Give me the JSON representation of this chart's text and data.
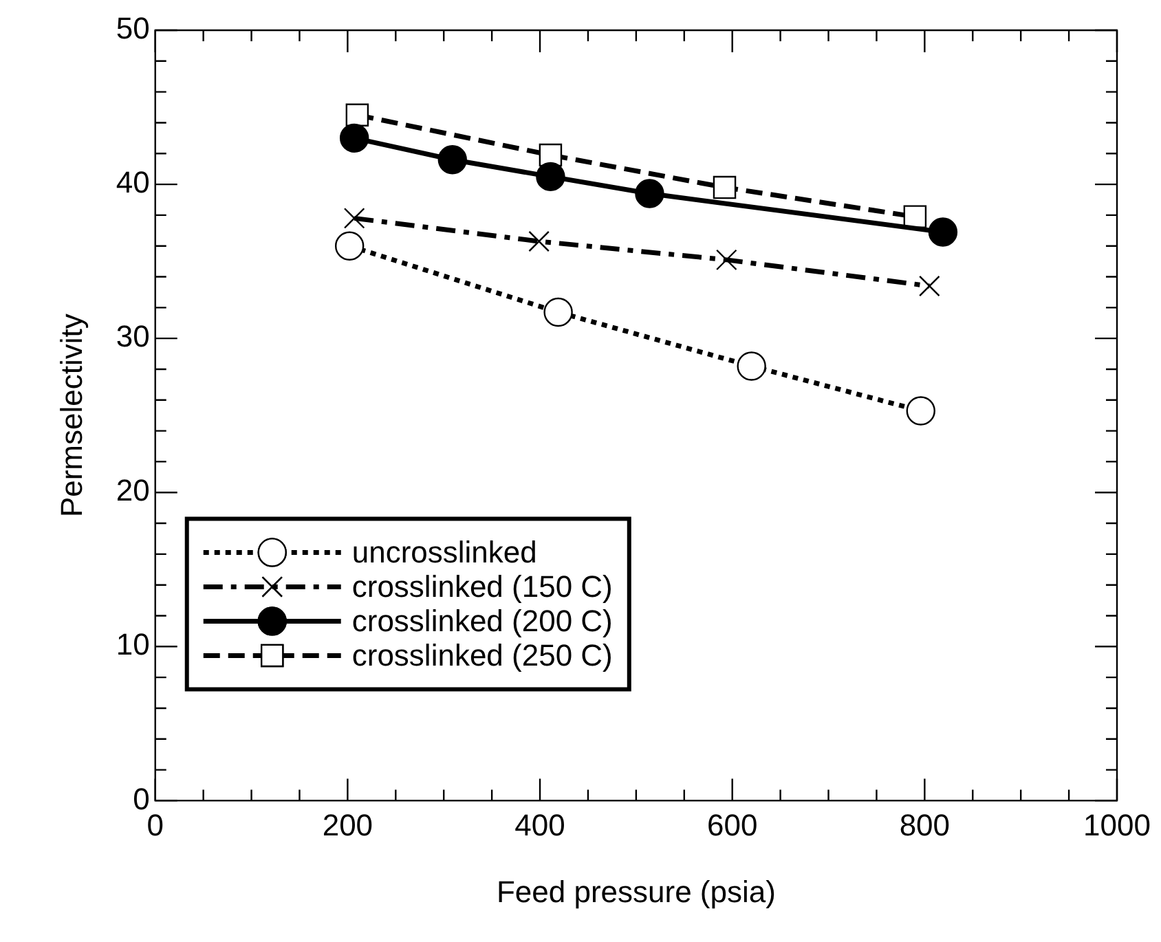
{
  "chart_data": {
    "type": "line",
    "xlabel": "Feed pressure (psia)",
    "ylabel": "Permselectivity",
    "xlim": [
      0,
      1000
    ],
    "ylim": [
      0,
      50
    ],
    "xticks": [
      0,
      {
        "value": 50,
        "label": null
      },
      {
        "value": 100,
        "label": null
      },
      {
        "value": 150,
        "label": null
      },
      200,
      {
        "value": 250,
        "label": null
      },
      {
        "value": 300,
        "label": null
      },
      {
        "value": 350,
        "label": null
      },
      400,
      {
        "value": 450,
        "label": null
      },
      {
        "value": 500,
        "label": null
      },
      {
        "value": 550,
        "label": null
      },
      600,
      {
        "value": 650,
        "label": null
      },
      {
        "value": 700,
        "label": null
      },
      {
        "value": 750,
        "label": null
      },
      800,
      {
        "value": 850,
        "label": null
      },
      {
        "value": 900,
        "label": null
      },
      {
        "value": 950,
        "label": null
      },
      1000
    ],
    "yticks": [
      0,
      {
        "value": 2,
        "label": null
      },
      {
        "value": 4,
        "label": null
      },
      {
        "value": 6,
        "label": null
      },
      {
        "value": 8,
        "label": null
      },
      10,
      {
        "value": 12,
        "label": null
      },
      {
        "value": 14,
        "label": null
      },
      {
        "value": 16,
        "label": null
      },
      {
        "value": 18,
        "label": null
      },
      20,
      {
        "value": 22,
        "label": null
      },
      {
        "value": 24,
        "label": null
      },
      {
        "value": 26,
        "label": null
      },
      {
        "value": 28,
        "label": null
      },
      30,
      {
        "value": 32,
        "label": null
      },
      {
        "value": 34,
        "label": null
      },
      {
        "value": 36,
        "label": null
      },
      {
        "value": 38,
        "label": null
      },
      40,
      {
        "value": 42,
        "label": null
      },
      {
        "value": 44,
        "label": null
      },
      {
        "value": 46,
        "label": null
      },
      {
        "value": 48,
        "label": null
      },
      50
    ],
    "grid": false,
    "legend": "bottom left",
    "series": [
      {
        "name": "uncrosslinked",
        "color": "#000000",
        "marker": "circle",
        "line_style": "dotted",
        "x": [
          202,
          419,
          620,
          796
        ],
        "values": [
          36.0,
          31.7,
          28.2,
          25.3
        ]
      },
      {
        "name": "crosslinked (150 C)",
        "color": "#000000",
        "marker": "cross",
        "line_style": "dashdot",
        "x": [
          207,
          399,
          594,
          805
        ],
        "values": [
          37.8,
          36.3,
          35.1,
          33.4
        ]
      },
      {
        "name": "crosslinked (200 C)",
        "color": "#000000",
        "colors": [
          "#000000",
          "#000000",
          "#000000",
          "#000000",
          "#000000"
        ],
        "marker": "circle",
        "line_style": "solid",
        "x": [
          207,
          309,
          411,
          514,
          819
        ],
        "values": [
          43.0,
          41.6,
          40.5,
          39.4,
          36.9
        ]
      },
      {
        "name": "crosslinked (250 C)",
        "color": "#000000",
        "marker": "square",
        "line_style": "dashed",
        "x": [
          210,
          411,
          592,
          790
        ],
        "values": [
          44.5,
          41.9,
          39.8,
          37.9
        ]
      }
    ]
  }
}
